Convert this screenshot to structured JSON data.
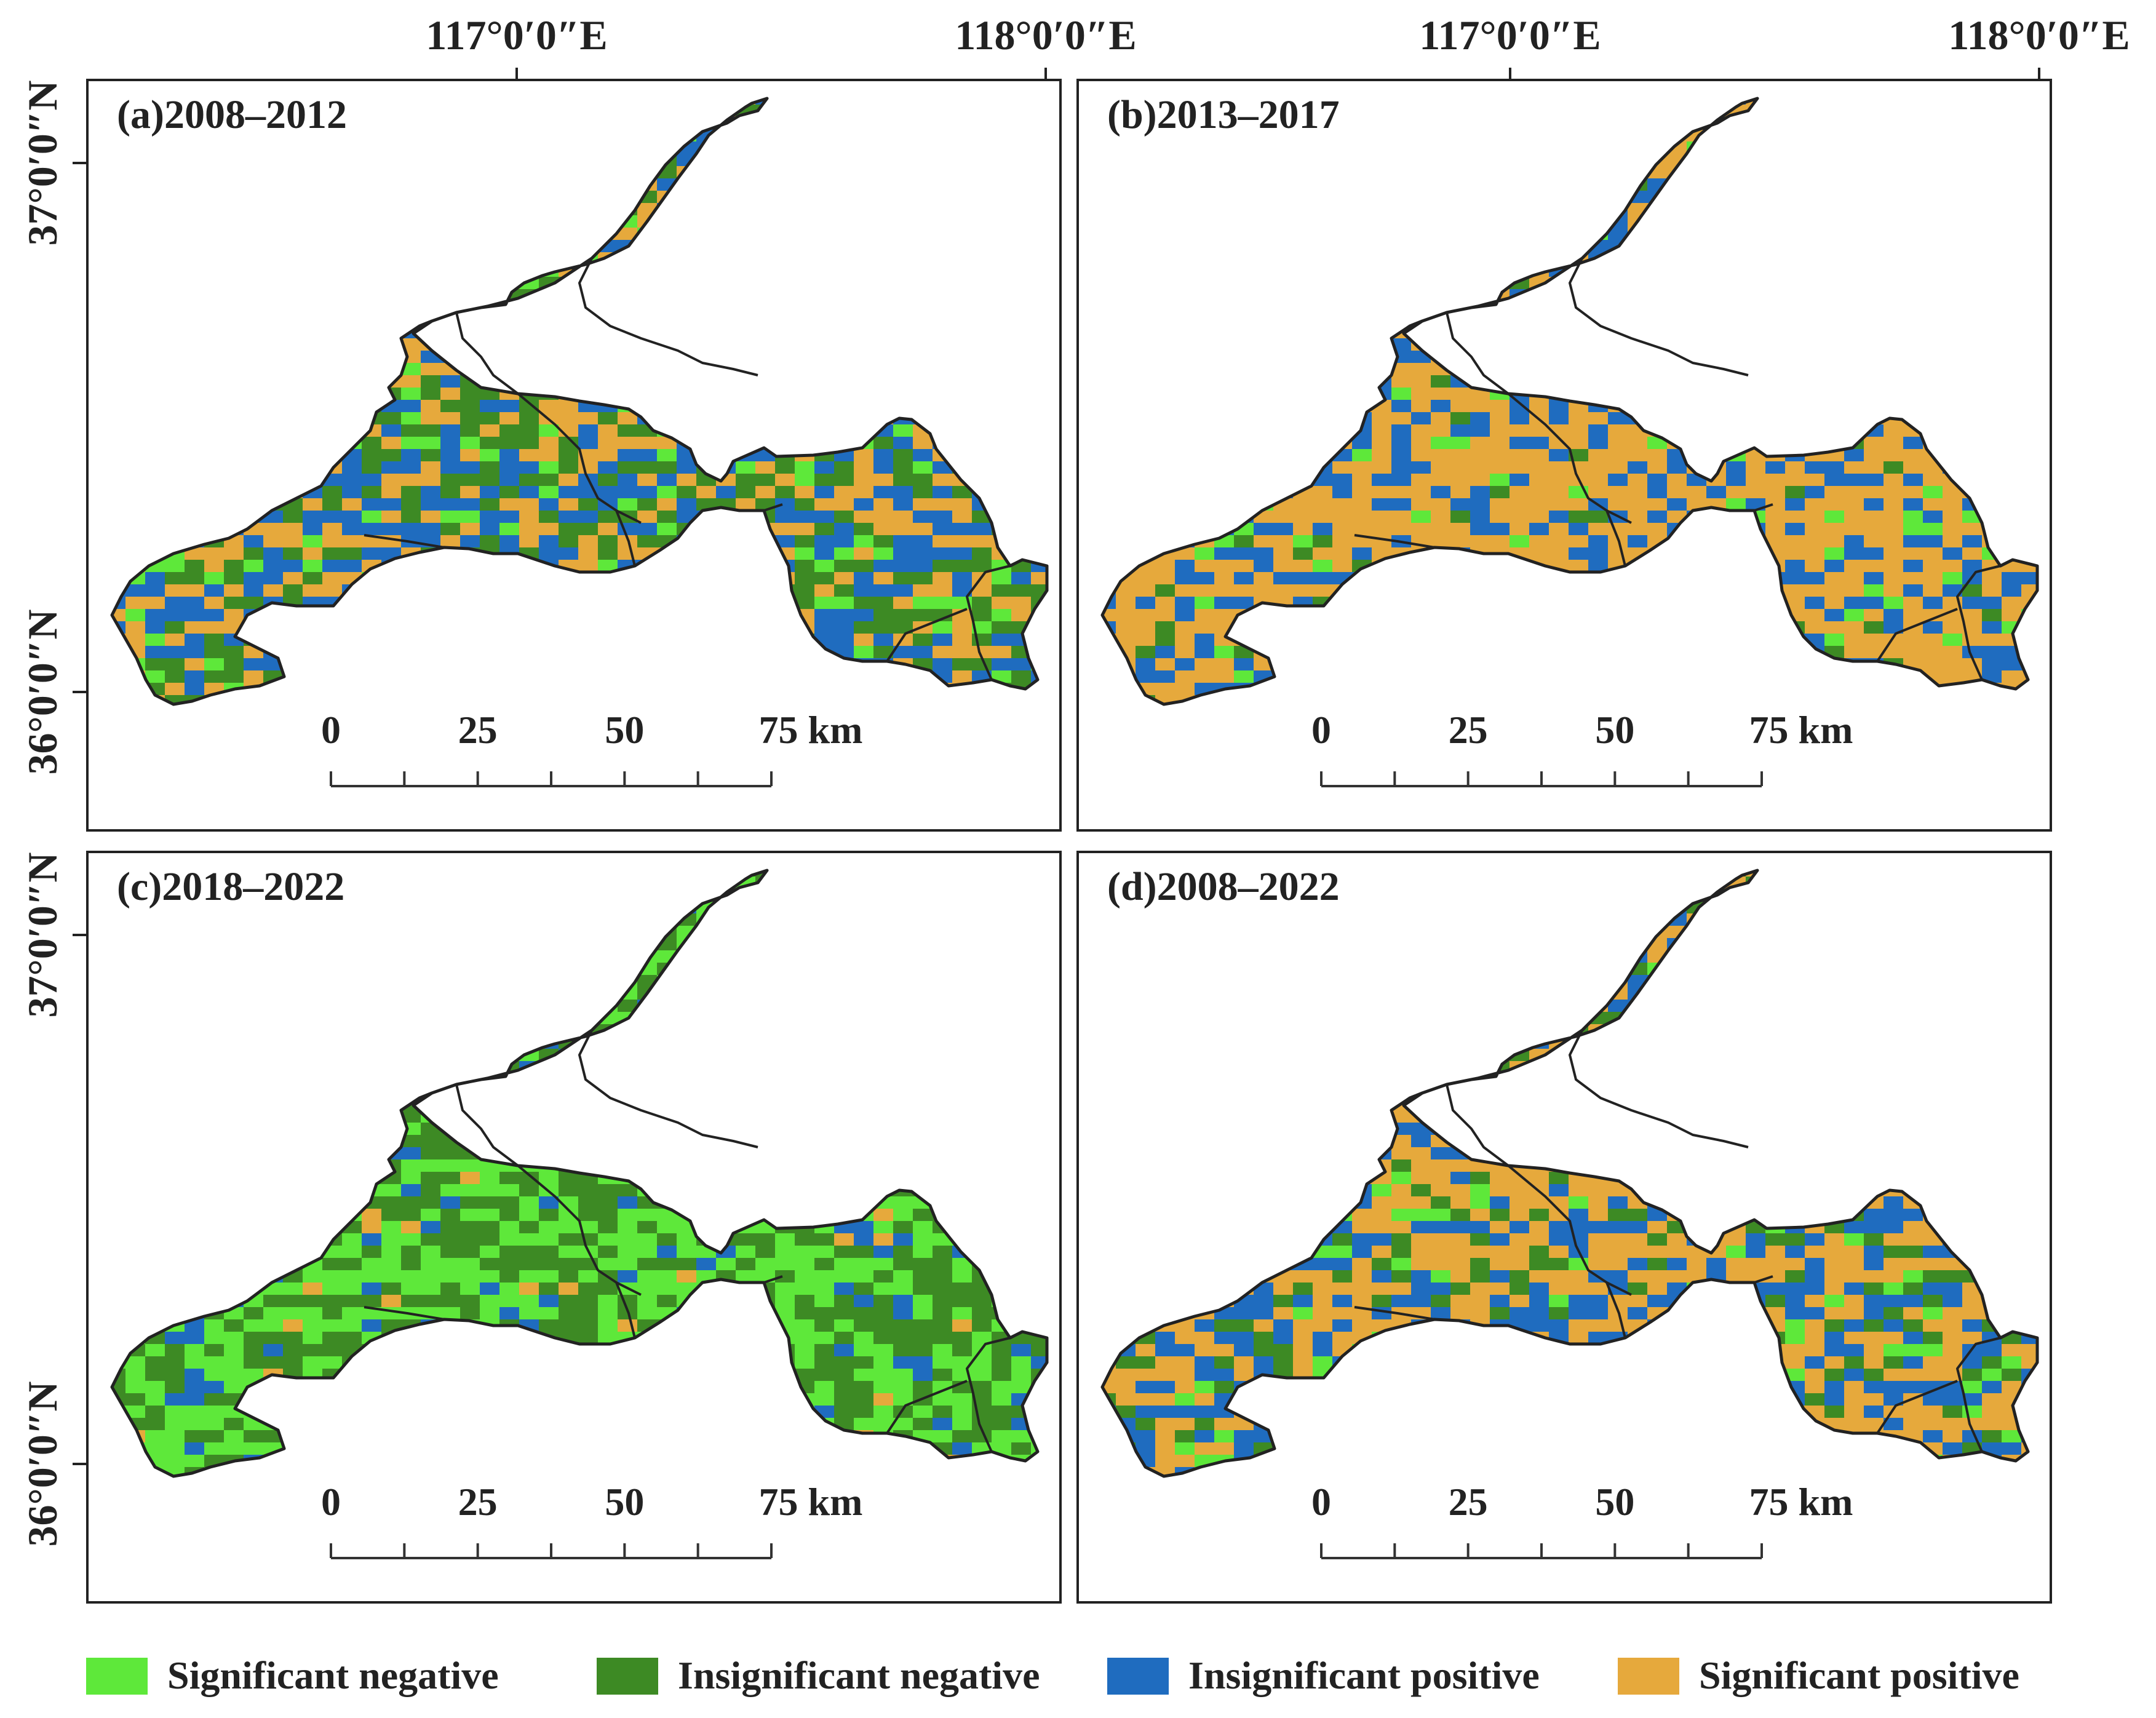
{
  "coordinate_labels": {
    "lon_117": "117°0′0″E",
    "lon_118": "118°0′0″E",
    "lat_37": "37°0′0″N",
    "lat_36": "36°0′0″N"
  },
  "panels": [
    {
      "label": "(a)2008–2012",
      "dominant": "mixed-a"
    },
    {
      "label": "(b)2013–2017",
      "dominant": "mixed-b"
    },
    {
      "label": "(c)2018–2022",
      "dominant": "mixed-c"
    },
    {
      "label": "(d)2008–2022",
      "dominant": "mixed-d"
    }
  ],
  "scale_bar": {
    "labels": [
      "0",
      "25",
      "50",
      "75 km"
    ]
  },
  "legend": {
    "items": [
      {
        "label": "Significant negative",
        "color": "#5ee83a"
      },
      {
        "label": "Insignificant negative",
        "color": "#3d8a24"
      },
      {
        "label": "Insignificant positive",
        "color": "#1f6cbf"
      },
      {
        "label": "Significant positive",
        "color": "#e6a93c"
      }
    ]
  },
  "class_mix": {
    "mixed-a": [
      0.08,
      0.3,
      0.32,
      0.3
    ],
    "mixed-b": [
      0.06,
      0.04,
      0.3,
      0.6
    ],
    "mixed-c": [
      0.4,
      0.46,
      0.1,
      0.04
    ],
    "mixed-d": [
      0.06,
      0.16,
      0.28,
      0.5
    ]
  }
}
